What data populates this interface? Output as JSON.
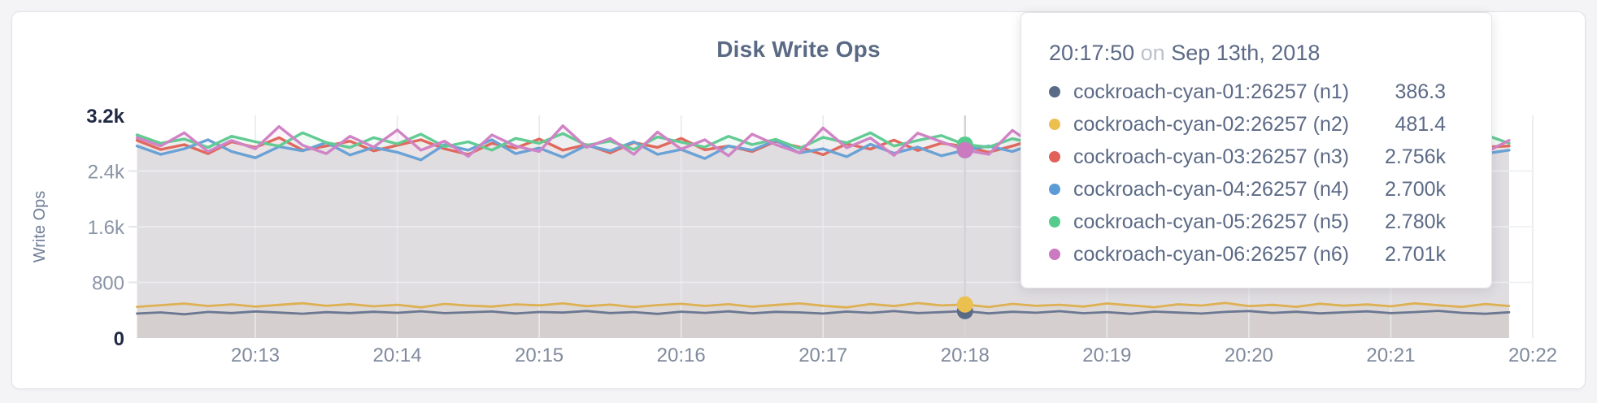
{
  "chart_data": {
    "type": "line",
    "title": "Disk Write Ops",
    "xlabel": "",
    "ylabel": "Write Ops",
    "ylim": [
      0,
      3200
    ],
    "grid": true,
    "legend_position": "hover-tooltip",
    "y_ticks": [
      {
        "value": 3200,
        "label": "3.2k",
        "emph": true
      },
      {
        "value": 2400,
        "label": "2.4k",
        "emph": false
      },
      {
        "value": 1600,
        "label": "1.6k",
        "emph": false
      },
      {
        "value": 800,
        "label": "800",
        "emph": false
      },
      {
        "value": 0,
        "label": "0",
        "emph": true
      }
    ],
    "x_base_time": "20:12:00",
    "x_start_seconds": 10,
    "x_step_seconds": 10,
    "x_ticks": [
      {
        "seconds": 60,
        "label": "20:13"
      },
      {
        "seconds": 120,
        "label": "20:14"
      },
      {
        "seconds": 180,
        "label": "20:15"
      },
      {
        "seconds": 240,
        "label": "20:16"
      },
      {
        "seconds": 300,
        "label": "20:17"
      },
      {
        "seconds": 360,
        "label": "20:18"
      },
      {
        "seconds": 420,
        "label": "20:19"
      },
      {
        "seconds": 480,
        "label": "20:20"
      },
      {
        "seconds": 540,
        "label": "20:21"
      },
      {
        "seconds": 600,
        "label": "20:22"
      }
    ],
    "hover": {
      "seconds": 360,
      "time_label": "20:17:50",
      "date_label": "Sep 13th, 2018"
    },
    "series": [
      {
        "name": "cockroach-cyan-01:26257 (n1)",
        "color": "#6b7791",
        "dot_color": "#5a6b88",
        "values": [
          352,
          368,
          341,
          375,
          359,
          382,
          366,
          349,
          371,
          358,
          377,
          362,
          384,
          357,
          369,
          381,
          353,
          374,
          366,
          388,
          359,
          372,
          347,
          378,
          361,
          383,
          355,
          376,
          368,
          351,
          379,
          362,
          386,
          358,
          371,
          386.3,
          354,
          377,
          363,
          385,
          356,
          372,
          348,
          380,
          365,
          352,
          375,
          388,
          361,
          377,
          354,
          369,
          383,
          357,
          373,
          390,
          362,
          348,
          370
        ]
      },
      {
        "name": "cockroach-cyan-02:26257 (n2)",
        "color": "#ddb153",
        "dot_color": "#ecc04f",
        "values": [
          448,
          472,
          495,
          460,
          483,
          451,
          476,
          500,
          463,
          487,
          455,
          478,
          442,
          490,
          466,
          452,
          484,
          470,
          497,
          458,
          480,
          445,
          473,
          492,
          461,
          486,
          450,
          475,
          498,
          464,
          440,
          488,
          459,
          502,
          468,
          481.4,
          445,
          491,
          462,
          478,
          452,
          496,
          470,
          443,
          485,
          467,
          505,
          458,
          476,
          449,
          493,
          465,
          482,
          456,
          499,
          471,
          447,
          488,
          460
        ]
      },
      {
        "name": "cockroach-cyan-03:26257 (n3)",
        "color": "#e0695e",
        "dot_color": "#e2605a",
        "values": [
          2840,
          2710,
          2780,
          2650,
          2820,
          2740,
          2880,
          2700,
          2760,
          2830,
          2690,
          2770,
          2850,
          2720,
          2640,
          2800,
          2730,
          2860,
          2700,
          2780,
          2660,
          2810,
          2740,
          2870,
          2705,
          2760,
          2680,
          2825,
          2745,
          2635,
          2790,
          2715,
          2845,
          2695,
          2800,
          2756,
          2670,
          2760,
          2865,
          2720,
          2645,
          2785,
          2735,
          2855,
          2690,
          2765,
          2705,
          2830,
          2750,
          2660,
          2815,
          2730,
          2870,
          2700,
          2775,
          2650,
          2805,
          2745,
          2760
        ]
      },
      {
        "name": "cockroach-cyan-04:26257 (n4)",
        "color": "#6aa2d6",
        "dot_color": "#5b9cd6",
        "values": [
          2760,
          2640,
          2720,
          2850,
          2680,
          2590,
          2750,
          2690,
          2810,
          2630,
          2740,
          2670,
          2560,
          2780,
          2700,
          2850,
          2650,
          2730,
          2600,
          2770,
          2690,
          2820,
          2640,
          2710,
          2580,
          2760,
          2700,
          2840,
          2660,
          2720,
          2605,
          2785,
          2655,
          2745,
          2620,
          2700,
          2760,
          2680,
          2800,
          2590,
          2730,
          2665,
          2820,
          2640,
          2750,
          2600,
          2770,
          2695,
          2560,
          2740,
          2680,
          2800,
          2625,
          2755,
          2665,
          2590,
          2720,
          2650,
          2700
        ]
      },
      {
        "name": "cockroach-cyan-05:26257 (n5)",
        "color": "#62cb93",
        "dot_color": "#55cb8e",
        "values": [
          2920,
          2800,
          2860,
          2740,
          2900,
          2820,
          2760,
          2950,
          2810,
          2740,
          2880,
          2790,
          2930,
          2750,
          2820,
          2700,
          2870,
          2800,
          2940,
          2770,
          2830,
          2710,
          2890,
          2815,
          2745,
          2900,
          2780,
          2855,
          2725,
          2885,
          2805,
          2950,
          2760,
          2840,
          2910,
          2780,
          2745,
          2865,
          2795,
          2720,
          2900,
          2830,
          2755,
          2915,
          2785,
          2845,
          2705,
          2875,
          2808,
          2930,
          2765,
          2835,
          2760,
          2895,
          2750,
          2870,
          2790,
          2920,
          2800
        ]
      },
      {
        "name": "cockroach-cyan-06:26257 (n6)",
        "color": "#d083c5",
        "dot_color": "#cb7ac0",
        "values": [
          2880,
          2760,
          2950,
          2680,
          2840,
          2720,
          3040,
          2770,
          2650,
          2900,
          2745,
          2990,
          2700,
          2830,
          2610,
          2920,
          2760,
          2680,
          3050,
          2740,
          2870,
          2640,
          2960,
          2715,
          2850,
          2620,
          2930,
          2780,
          2660,
          3020,
          2735,
          2875,
          2625,
          2945,
          2820,
          2701,
          2640,
          2985,
          2755,
          2680,
          2910,
          2730,
          3060,
          2690,
          2835,
          2615,
          2950,
          2770,
          2655,
          2895,
          2725,
          2975,
          2645,
          2860,
          2705,
          2990,
          2750,
          2670,
          2840
        ]
      }
    ]
  },
  "tooltip": {
    "time": "20:17:50",
    "on_word": "on",
    "date": "Sep 13th, 2018",
    "rows": [
      {
        "label": "cockroach-cyan-01:26257 (n1)",
        "value": "386.3",
        "color": "#5a6b88"
      },
      {
        "label": "cockroach-cyan-02:26257 (n2)",
        "value": "481.4",
        "color": "#ecc04f"
      },
      {
        "label": "cockroach-cyan-03:26257 (n3)",
        "value": "2.756k",
        "color": "#e2605a"
      },
      {
        "label": "cockroach-cyan-04:26257 (n4)",
        "value": "2.700k",
        "color": "#5b9cd6"
      },
      {
        "label": "cockroach-cyan-05:26257 (n5)",
        "value": "2.780k",
        "color": "#55cb8e"
      },
      {
        "label": "cockroach-cyan-06:26257 (n6)",
        "value": "2.701k",
        "color": "#cb7ac0"
      }
    ]
  }
}
